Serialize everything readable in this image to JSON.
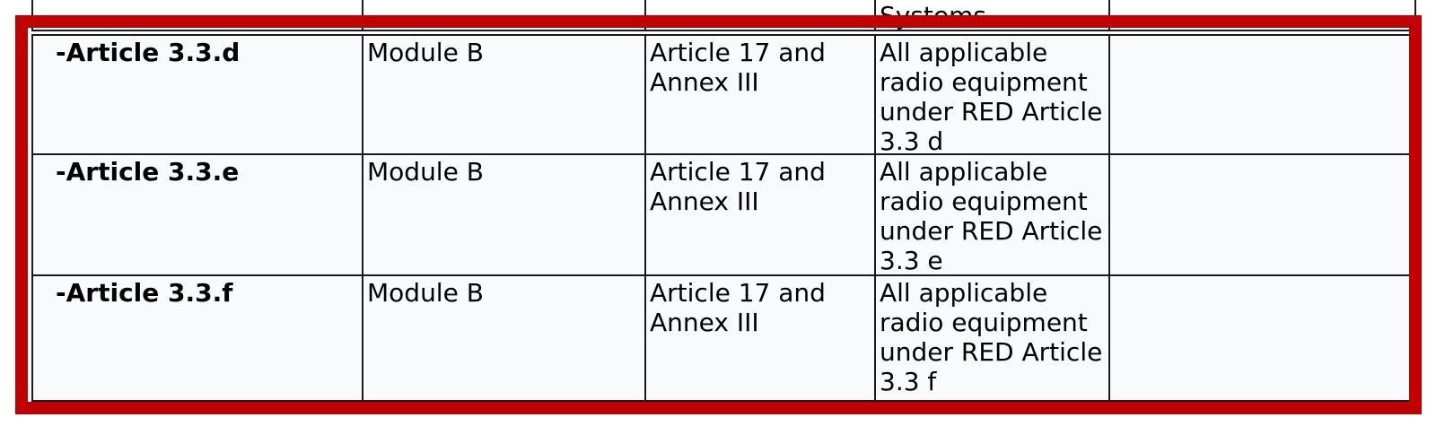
{
  "colors": {
    "highlight_border": "#c00000",
    "grid_line": "#1a1a1a",
    "cell_background": "#f9fafb"
  },
  "table": {
    "top_partial_row": {
      "col1": "",
      "col2": "",
      "col3": "",
      "col4": "Systems",
      "col5": ""
    },
    "rows": [
      {
        "article": "-Article 3.3.d",
        "module": "Module B",
        "reference": "Article 17 and\nAnnex III",
        "equipment": "All applicable\nradio equipment\nunder RED Article\n3.3 d",
        "notes": ""
      },
      {
        "article": "-Article 3.3.e",
        "module": "Module B",
        "reference": "Article 17 and\nAnnex III",
        "equipment": "All applicable\nradio equipment\nunder RED Article\n3.3 e",
        "notes": ""
      },
      {
        "article": "-Article 3.3.f",
        "module": "Module B",
        "reference": "Article 17 and\nAnnex III",
        "equipment": "All applicable\nradio equipment\nunder RED Article\n3.3 f",
        "notes": ""
      }
    ]
  }
}
